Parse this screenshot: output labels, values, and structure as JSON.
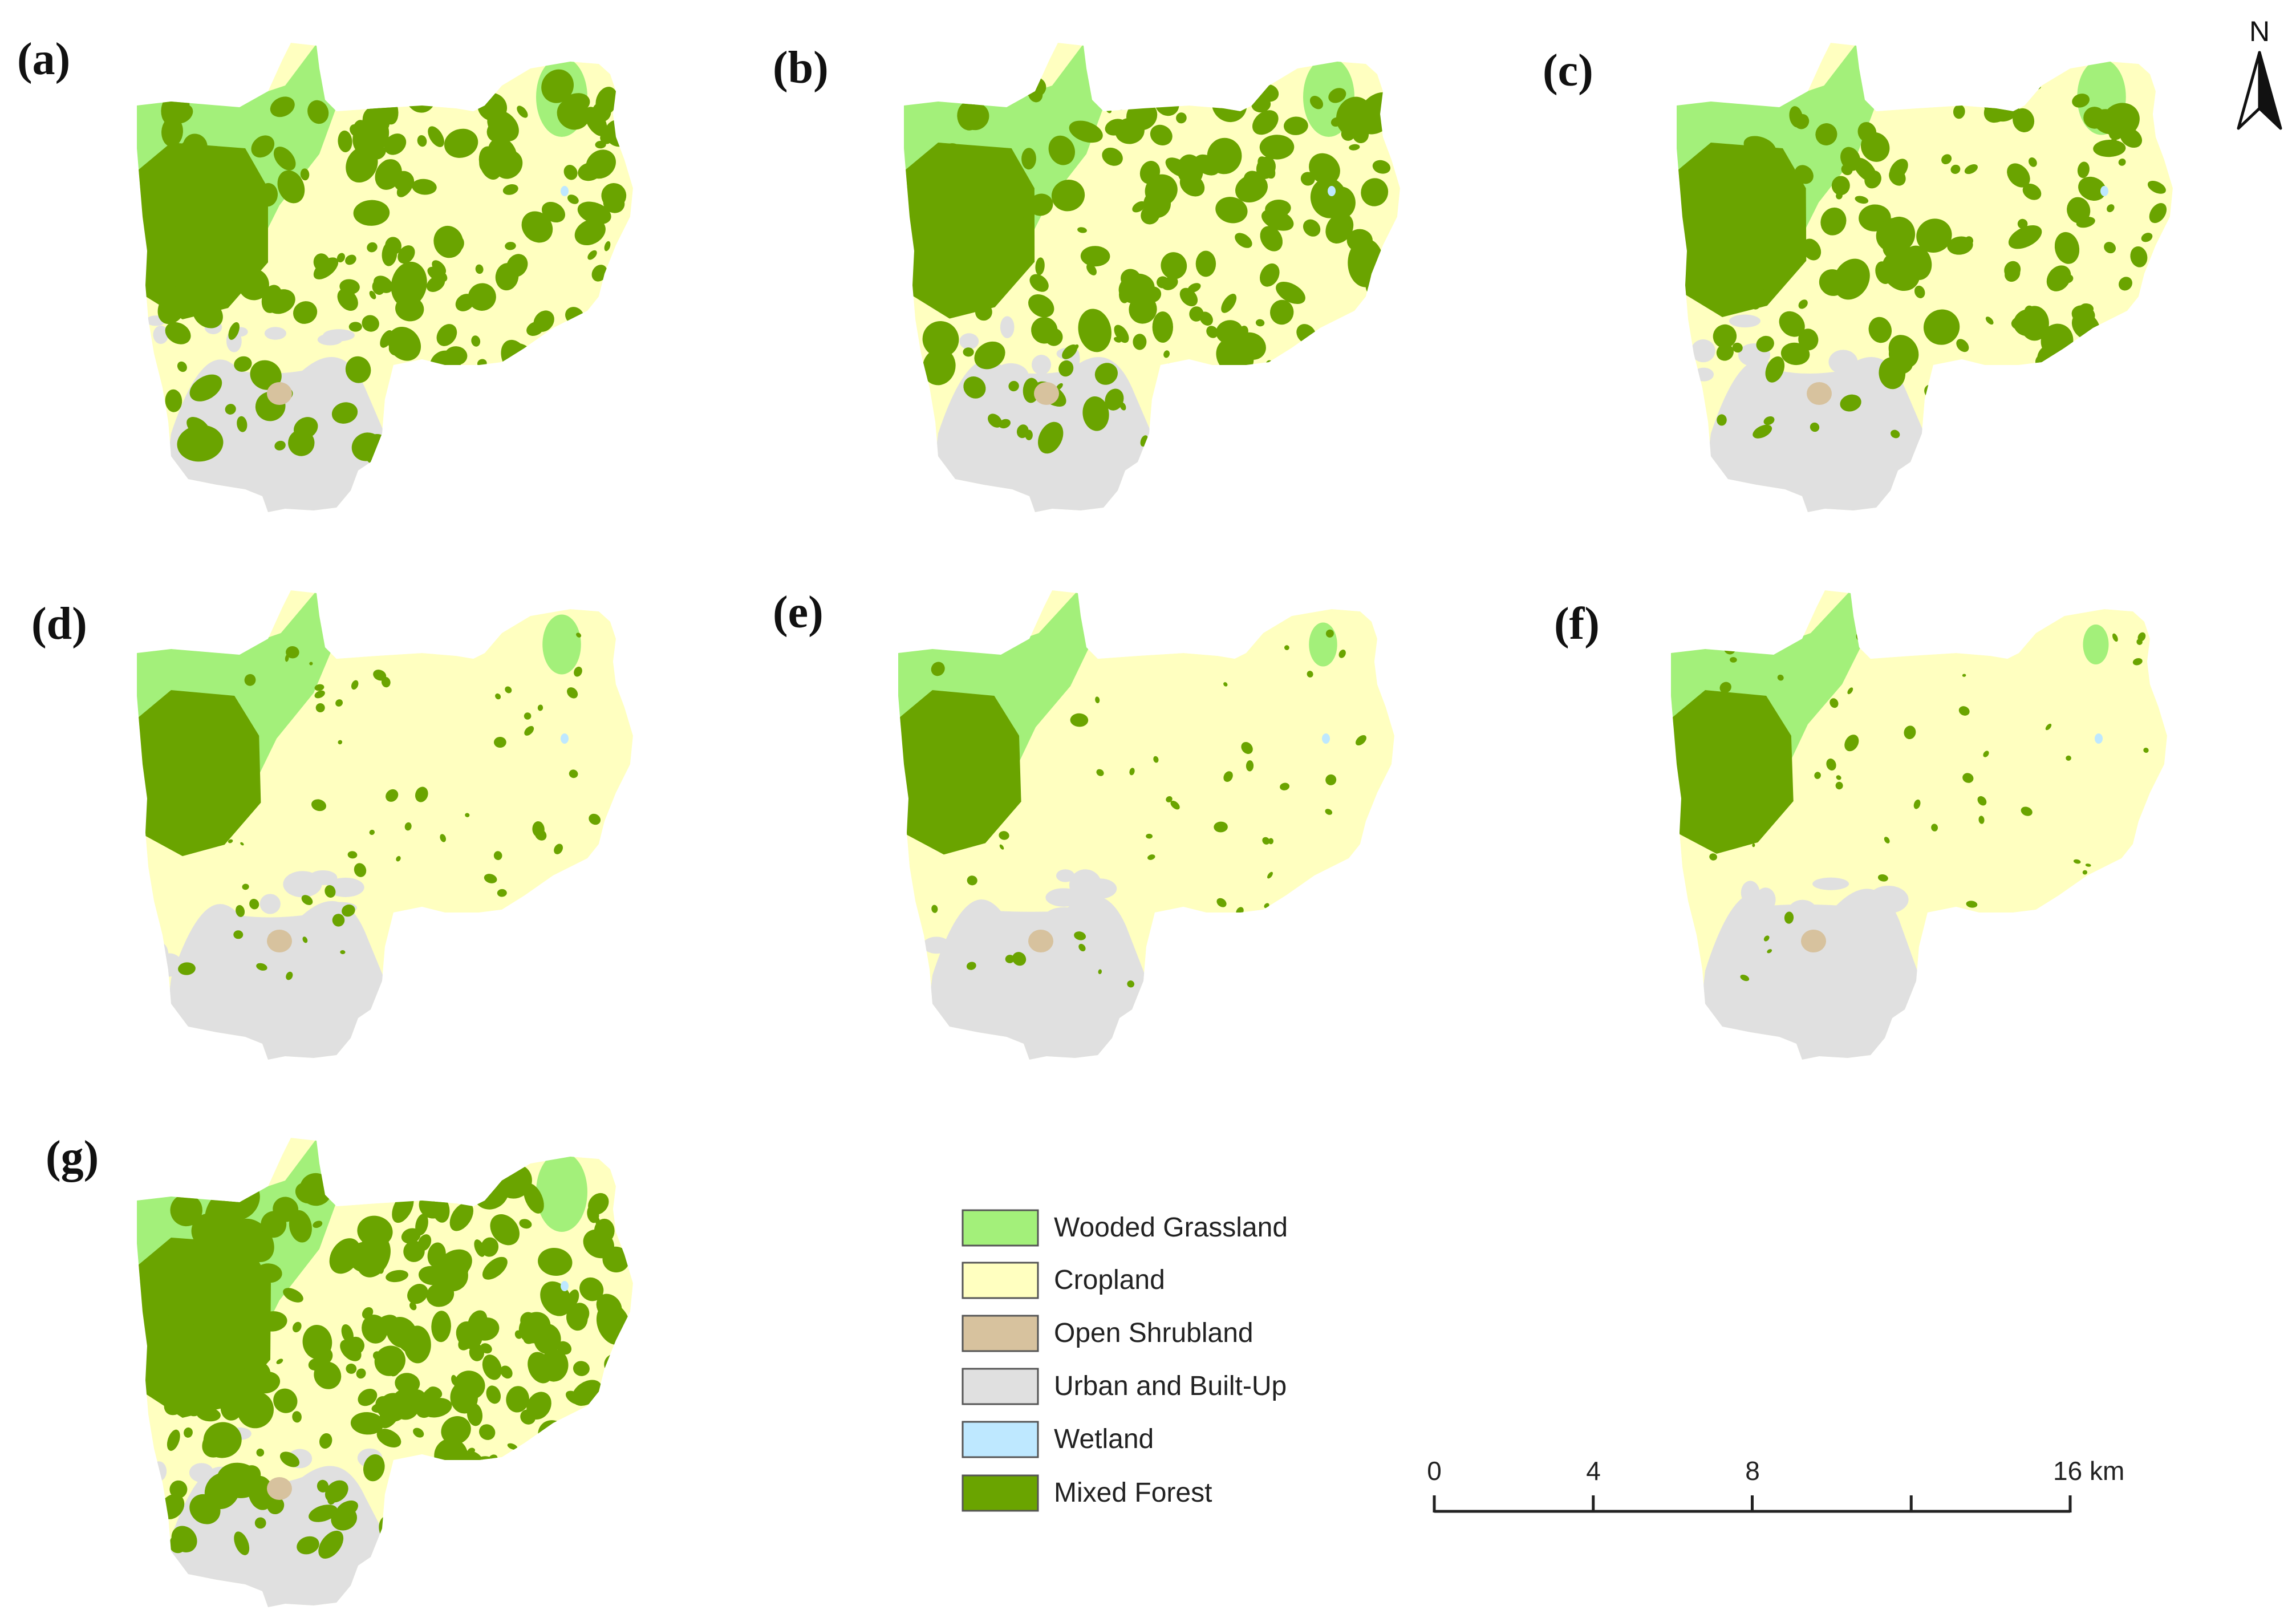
{
  "panels": [
    {
      "label": "(a)",
      "forest": 1.0,
      "wood": 1.0,
      "urban": 1.0
    },
    {
      "label": "(b)",
      "forest": 0.95,
      "wood": 1.0,
      "urban": 1.0
    },
    {
      "label": "(c)",
      "forest": 0.85,
      "wood": 0.95,
      "urban": 1.0
    },
    {
      "label": "(d)",
      "forest": 0.3,
      "wood": 0.75,
      "urban": 1.1
    },
    {
      "label": "(e)",
      "forest": 0.2,
      "wood": 0.55,
      "urban": 1.25
    },
    {
      "label": "(f)",
      "forest": 0.15,
      "wood": 0.5,
      "urban": 1.45
    },
    {
      "label": "(g)",
      "forest": 1.4,
      "wood": 1.0,
      "urban": 0.6
    }
  ],
  "legend": {
    "items": [
      {
        "label": "Wooded Grassland",
        "color": "#a3f07a"
      },
      {
        "label": "Cropland",
        "color": "#ffffc0"
      },
      {
        "label": "Open Shrubland",
        "color": "#d7c29e"
      },
      {
        "label": "Urban and Built-Up",
        "color": "#e0e0e0"
      },
      {
        "label": "Wetland",
        "color": "#bee8ff"
      },
      {
        "label": "Mixed Forest",
        "color": "#6aa400"
      }
    ]
  },
  "scale_bar": {
    "labels": [
      "0",
      "4",
      "8",
      "16 km"
    ],
    "ticks_km": [
      0,
      4,
      8,
      12,
      16
    ]
  },
  "north_arrow": {
    "label": "N"
  }
}
